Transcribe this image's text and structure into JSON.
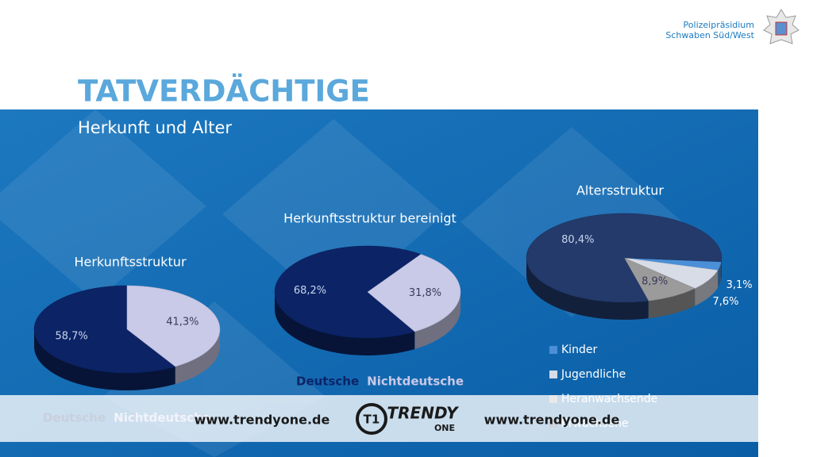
{
  "header": {
    "title": "TATVERDÄCHTIGE",
    "subtitle": "Herkunft und Alter",
    "org_line1": "Polizeipräsidium",
    "org_line2": "Schwaben Süd/West"
  },
  "chart_data": [
    {
      "type": "pie",
      "title": "Herkunftsstruktur",
      "categories": [
        "Deutsche",
        "Nichtdeutsche"
      ],
      "values": [
        58.7,
        41.3
      ],
      "value_labels": [
        "58,7%",
        "41,3%"
      ],
      "colors": [
        "#0c2466",
        "#c9c9e8"
      ],
      "legend": "bottom"
    },
    {
      "type": "pie",
      "title": "Herkunftsstruktur bereinigt",
      "categories": [
        "Deutsche",
        "Nichtdeutsche"
      ],
      "values": [
        68.2,
        31.8
      ],
      "value_labels": [
        "68,2%",
        "31,8%"
      ],
      "colors": [
        "#0c2466",
        "#c9c9e8"
      ],
      "legend": "bottom"
    },
    {
      "type": "pie",
      "title": "Altersstruktur",
      "categories": [
        "Kinder",
        "Jugendliche",
        "Heranwachsende",
        "Erwachsene"
      ],
      "values": [
        3.1,
        7.6,
        8.9,
        80.4
      ],
      "value_labels": [
        "3,1%",
        "7,6%",
        "8,9%",
        "80,4%"
      ],
      "colors": [
        "#4a8fd8",
        "#d8dce6",
        "#9b9b9b",
        "#233a6b"
      ],
      "legend": "bottom"
    }
  ],
  "watermark": {
    "left": "www.trendyone.de",
    "brand": "TRENDY",
    "brand_sub": "ONE",
    "right": "www.trendyone.de"
  }
}
